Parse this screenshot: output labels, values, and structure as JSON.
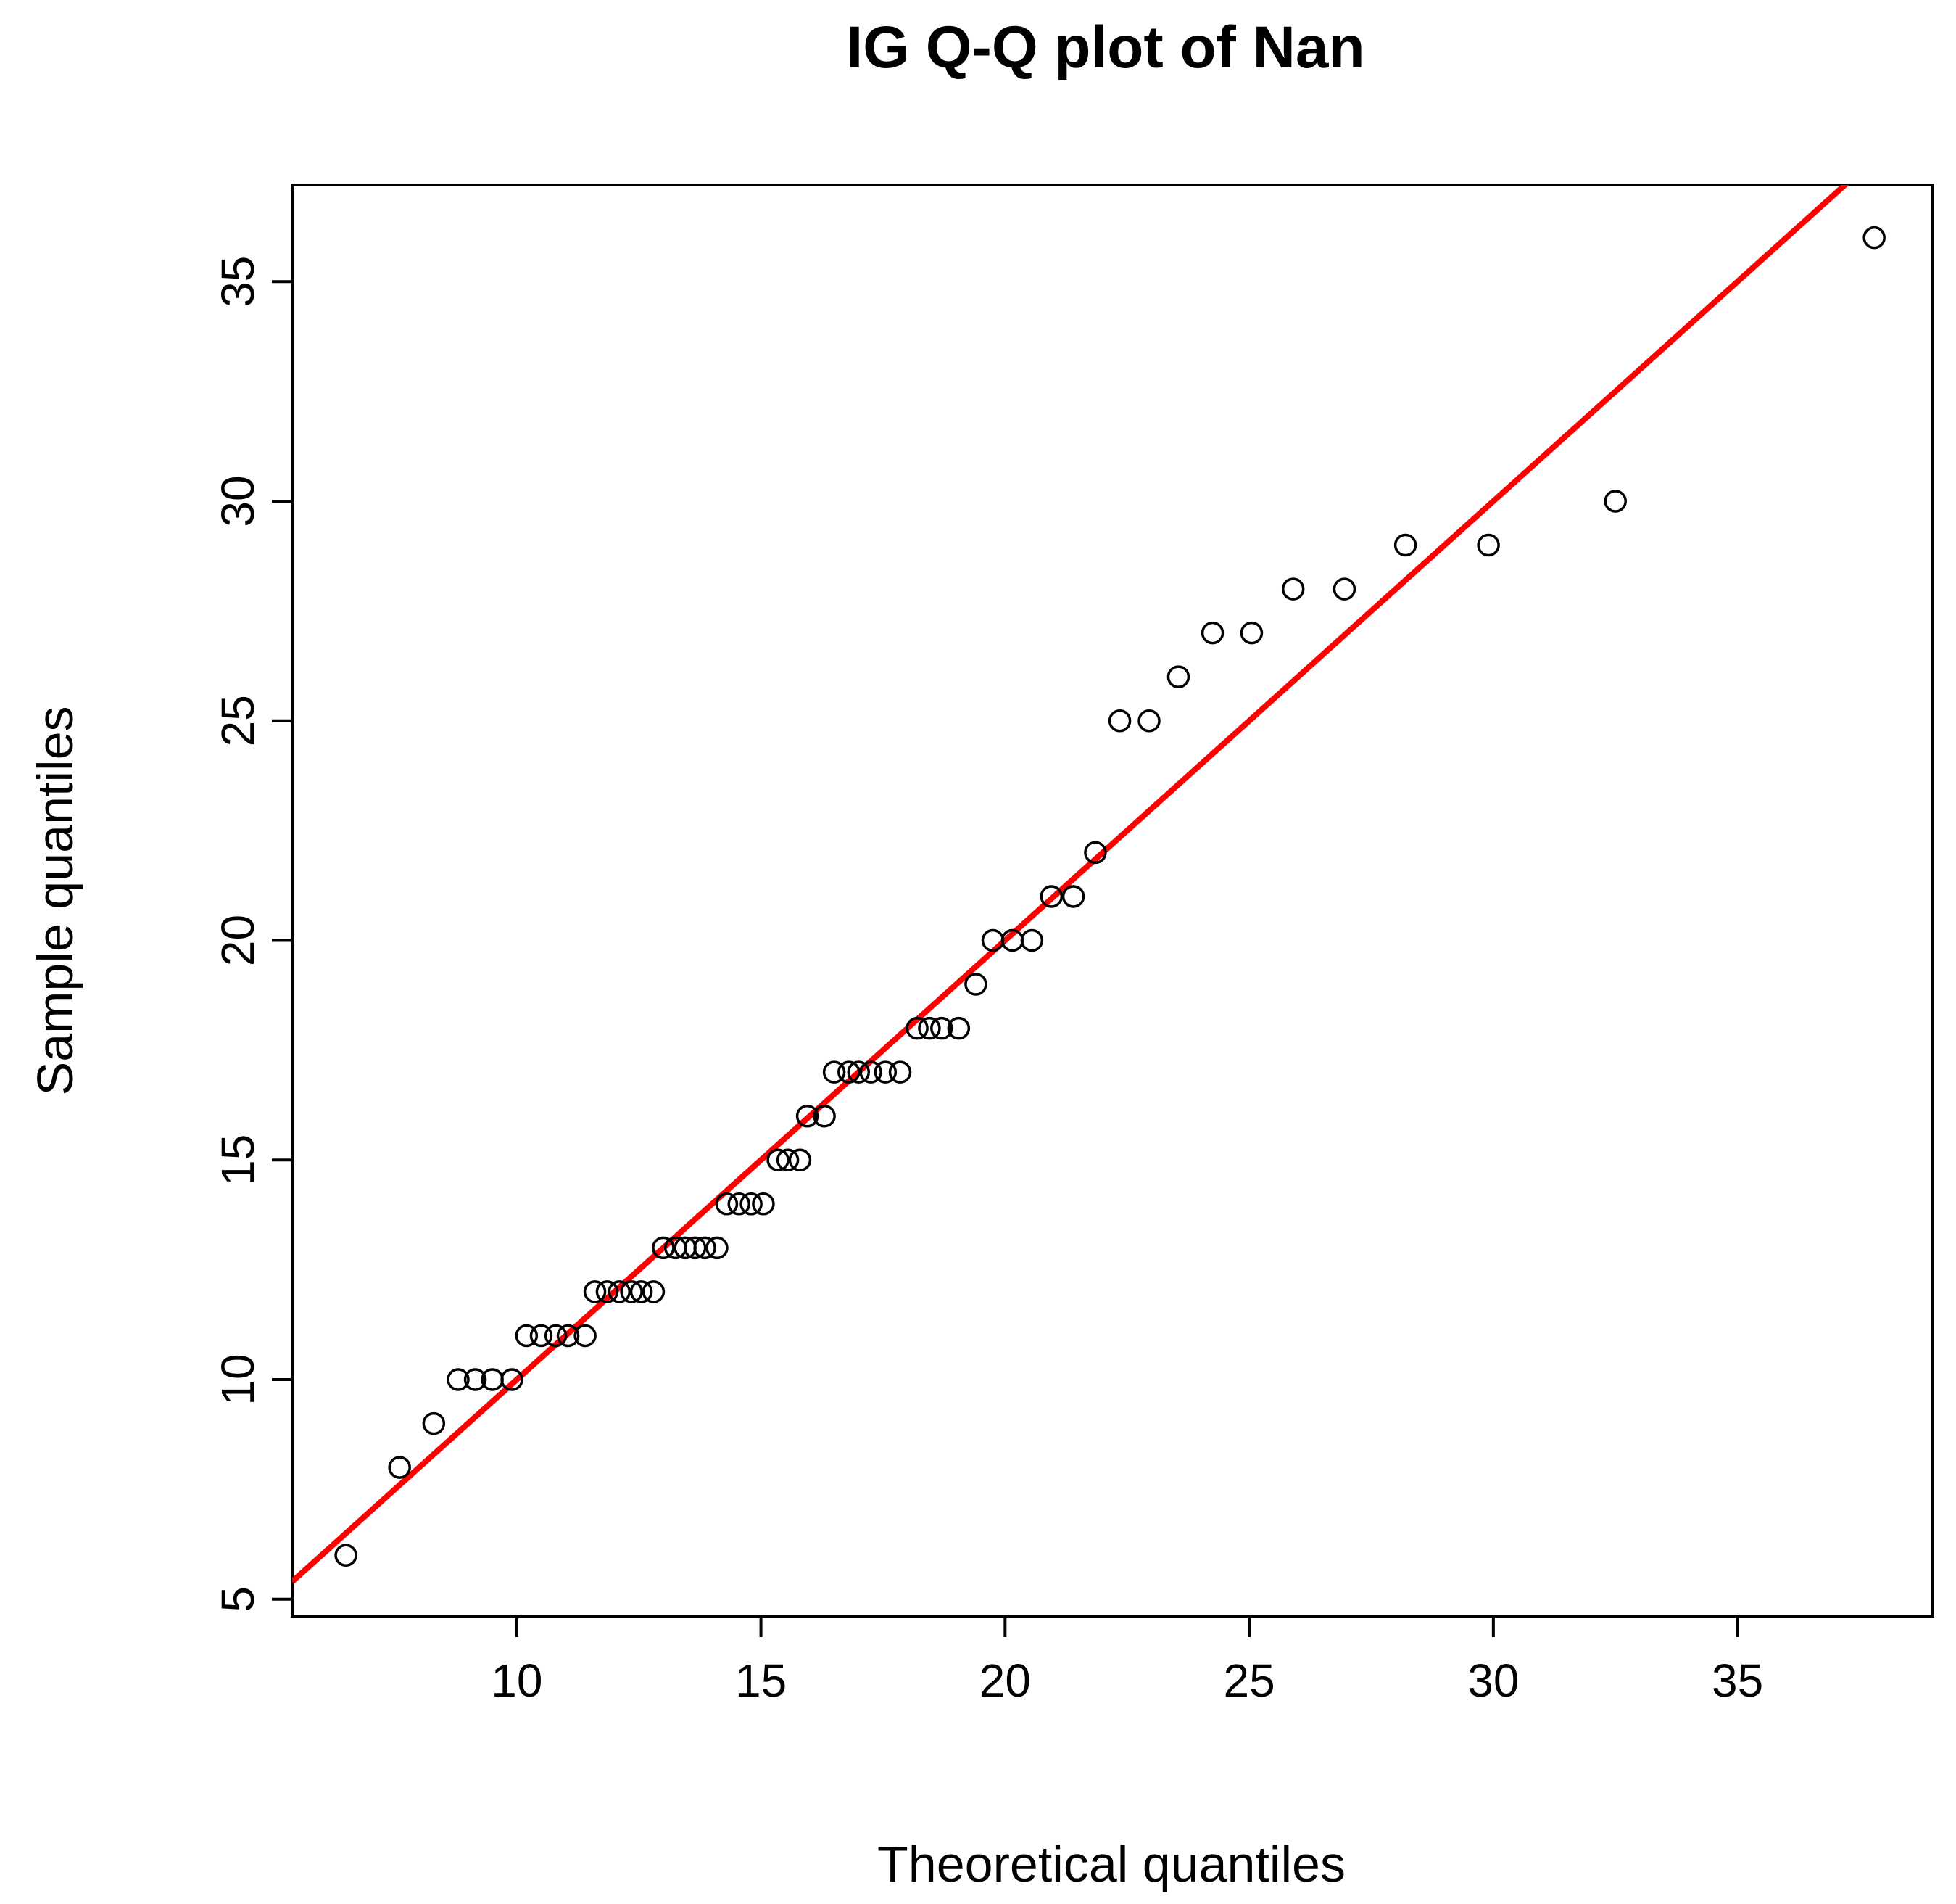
{
  "chart_data": {
    "type": "scatter",
    "title": "IG Q-Q plot of Nan",
    "xlabel": "Theoretical quantiles",
    "ylabel": "Sample quantiles",
    "xlim": [
      5.4,
      39.0
    ],
    "ylim": [
      4.6,
      37.2
    ],
    "xticks": [
      10,
      15,
      20,
      25,
      30,
      35
    ],
    "yticks": [
      5,
      10,
      15,
      20,
      25,
      30,
      35
    ],
    "grid": false,
    "reference_line": {
      "color": "#ff0000",
      "intercept": 0,
      "slope": 1
    },
    "points": [
      [
        6.5,
        6
      ],
      [
        7.6,
        8
      ],
      [
        8.3,
        9
      ],
      [
        8.8,
        10
      ],
      [
        9.15,
        10
      ],
      [
        9.5,
        10
      ],
      [
        9.9,
        10
      ],
      [
        10.2,
        11
      ],
      [
        10.5,
        11
      ],
      [
        10.8,
        11
      ],
      [
        11.05,
        11
      ],
      [
        11.4,
        11
      ],
      [
        11.6,
        12
      ],
      [
        11.85,
        12
      ],
      [
        12.1,
        12
      ],
      [
        12.35,
        12
      ],
      [
        12.55,
        12
      ],
      [
        12.8,
        12
      ],
      [
        13.0,
        13
      ],
      [
        13.25,
        13
      ],
      [
        13.45,
        13
      ],
      [
        13.65,
        13
      ],
      [
        13.85,
        13
      ],
      [
        14.1,
        13
      ],
      [
        14.3,
        14
      ],
      [
        14.55,
        14
      ],
      [
        14.8,
        14
      ],
      [
        15.05,
        14
      ],
      [
        15.35,
        15
      ],
      [
        15.55,
        15
      ],
      [
        15.8,
        15
      ],
      [
        15.95,
        16
      ],
      [
        16.3,
        16
      ],
      [
        16.5,
        17
      ],
      [
        16.8,
        17
      ],
      [
        17.0,
        17
      ],
      [
        17.25,
        17
      ],
      [
        17.55,
        17
      ],
      [
        17.85,
        17
      ],
      [
        18.2,
        18
      ],
      [
        18.45,
        18
      ],
      [
        18.7,
        18
      ],
      [
        19.05,
        18
      ],
      [
        19.4,
        19
      ],
      [
        19.75,
        20
      ],
      [
        20.15,
        20
      ],
      [
        20.55,
        20
      ],
      [
        20.95,
        21
      ],
      [
        21.4,
        21
      ],
      [
        21.85,
        22
      ],
      [
        22.35,
        25
      ],
      [
        22.95,
        25
      ],
      [
        23.55,
        26
      ],
      [
        24.25,
        27
      ],
      [
        25.05,
        27
      ],
      [
        25.9,
        28
      ],
      [
        26.95,
        28
      ],
      [
        28.2,
        29
      ],
      [
        29.9,
        29
      ],
      [
        32.5,
        30
      ],
      [
        37.8,
        36
      ]
    ]
  }
}
